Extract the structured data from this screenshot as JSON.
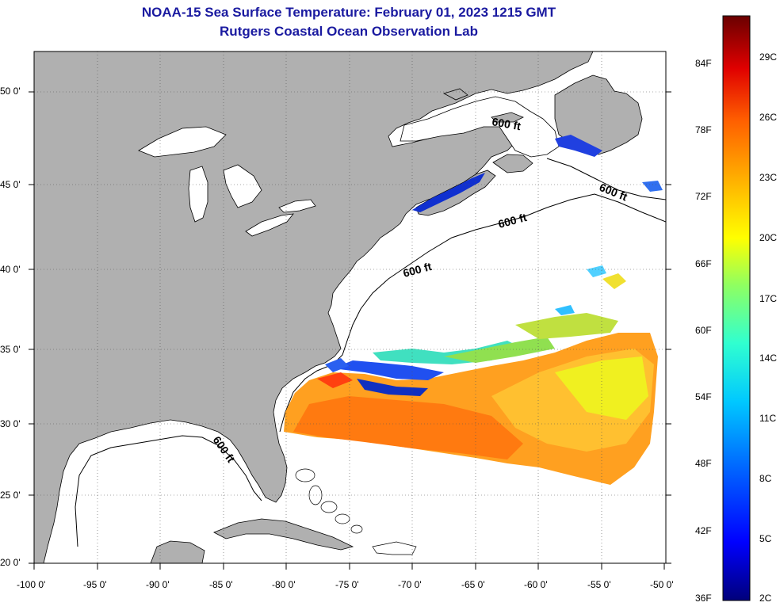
{
  "header": {
    "title": "NOAA-15 Sea Surface Temperature:  February 01, 2023 1215 GMT",
    "subtitle": "Rutgers Coastal Ocean Observation Lab"
  },
  "axes": {
    "lon_labels": [
      "-100 0'",
      "-95 0'",
      "-90 0'",
      "-85 0'",
      "-80 0'",
      "-75 0'",
      "-70 0'",
      "-65 0'",
      "-60 0'",
      "-55 0'",
      "-50 0'"
    ],
    "lat_labels": [
      "50 0'",
      "45 0'",
      "40 0'",
      "35 0'",
      "30 0'",
      "25 0'",
      "20 0'"
    ]
  },
  "map": {
    "lon_range": [
      -100,
      -50
    ],
    "lat_range": [
      20,
      52.5
    ],
    "land_color": "#b0b0b0",
    "ocean_color": "#ffffff",
    "contour_labels": [
      "600 ft",
      "600 ft",
      "600 ft",
      "600 ft",
      "600 ft"
    ]
  },
  "colorbar": {
    "f_labels": [
      "36F",
      "42F",
      "48F",
      "54F",
      "60F",
      "66F",
      "72F",
      "78F",
      "84F"
    ],
    "c_labels": [
      "2C",
      "5C",
      "8C",
      "11C",
      "14C",
      "17C",
      "20C",
      "23C",
      "26C",
      "29C"
    ],
    "colors": [
      "#00007a",
      "#0000ff",
      "#0080ff",
      "#00e0ff",
      "#40ffc0",
      "#a0ff40",
      "#ffff00",
      "#ffa000",
      "#ff3000",
      "#a00000",
      "#6a0000"
    ]
  }
}
